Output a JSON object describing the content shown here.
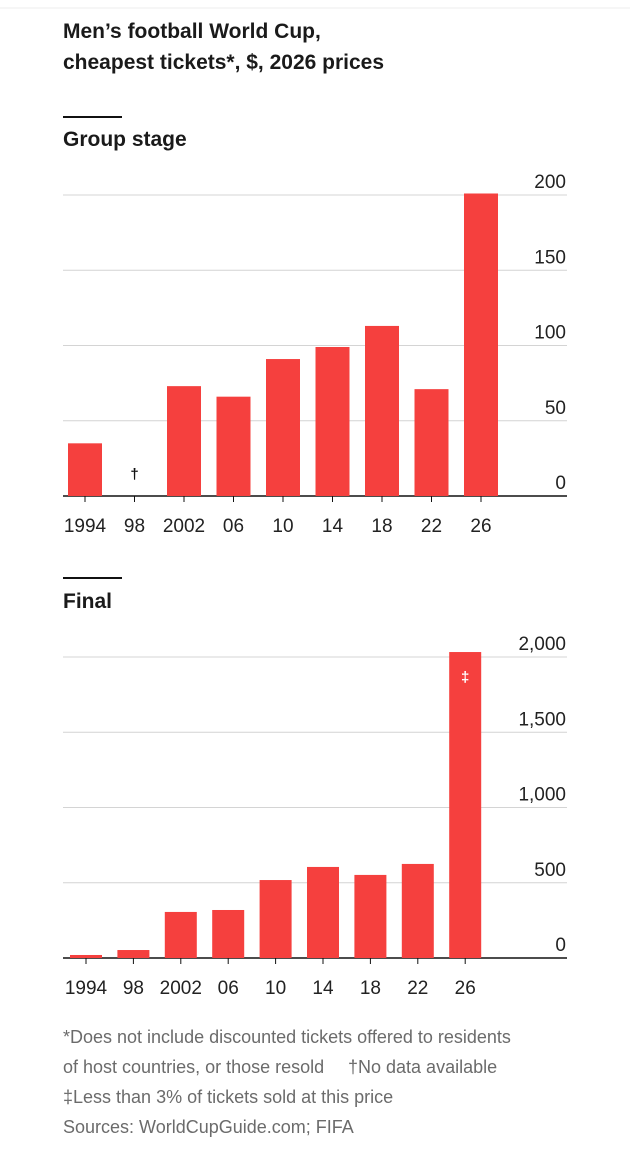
{
  "title": [
    "Men’s football World Cup,",
    "cheapest tickets*, $, 2026 prices"
  ],
  "notes": [
    "*Does not include discounted tickets offered to residents",
    "of host countries, or those resold",
    "†No data available",
    "‡Less than 3% of tickets sold at this price",
    "Sources: WorldCupGuide.com; FIFA"
  ],
  "chart_data": [
    {
      "type": "bar",
      "title": "Group stage",
      "color": "#f5403e",
      "categories": [
        "1994",
        "98",
        "2002",
        "06",
        "10",
        "14",
        "18",
        "22",
        "26"
      ],
      "values": [
        35,
        null,
        73,
        66,
        91,
        99,
        113,
        71,
        201
      ],
      "markers": [
        {
          "category": "98",
          "text": "†"
        }
      ],
      "ylim": [
        0,
        200
      ],
      "yticks": [
        0,
        50,
        100,
        150,
        200
      ],
      "grid": true
    },
    {
      "type": "bar",
      "title": "Final",
      "color": "#f5403e",
      "categories": [
        "1994",
        "98",
        "2002",
        "06",
        "10",
        "14",
        "18",
        "22",
        "26"
      ],
      "values": [
        20,
        53,
        306,
        319,
        518,
        605,
        552,
        625,
        2033
      ],
      "markers": [
        {
          "category": "26",
          "text": "‡"
        }
      ],
      "ylim": [
        0,
        2000
      ],
      "yticks": [
        0,
        500,
        {
          "value": 1000,
          "label": "1,000"
        },
        {
          "value": 1500,
          "label": "1,500"
        },
        {
          "value": 2000,
          "label": "2,000"
        }
      ],
      "grid": true
    }
  ]
}
